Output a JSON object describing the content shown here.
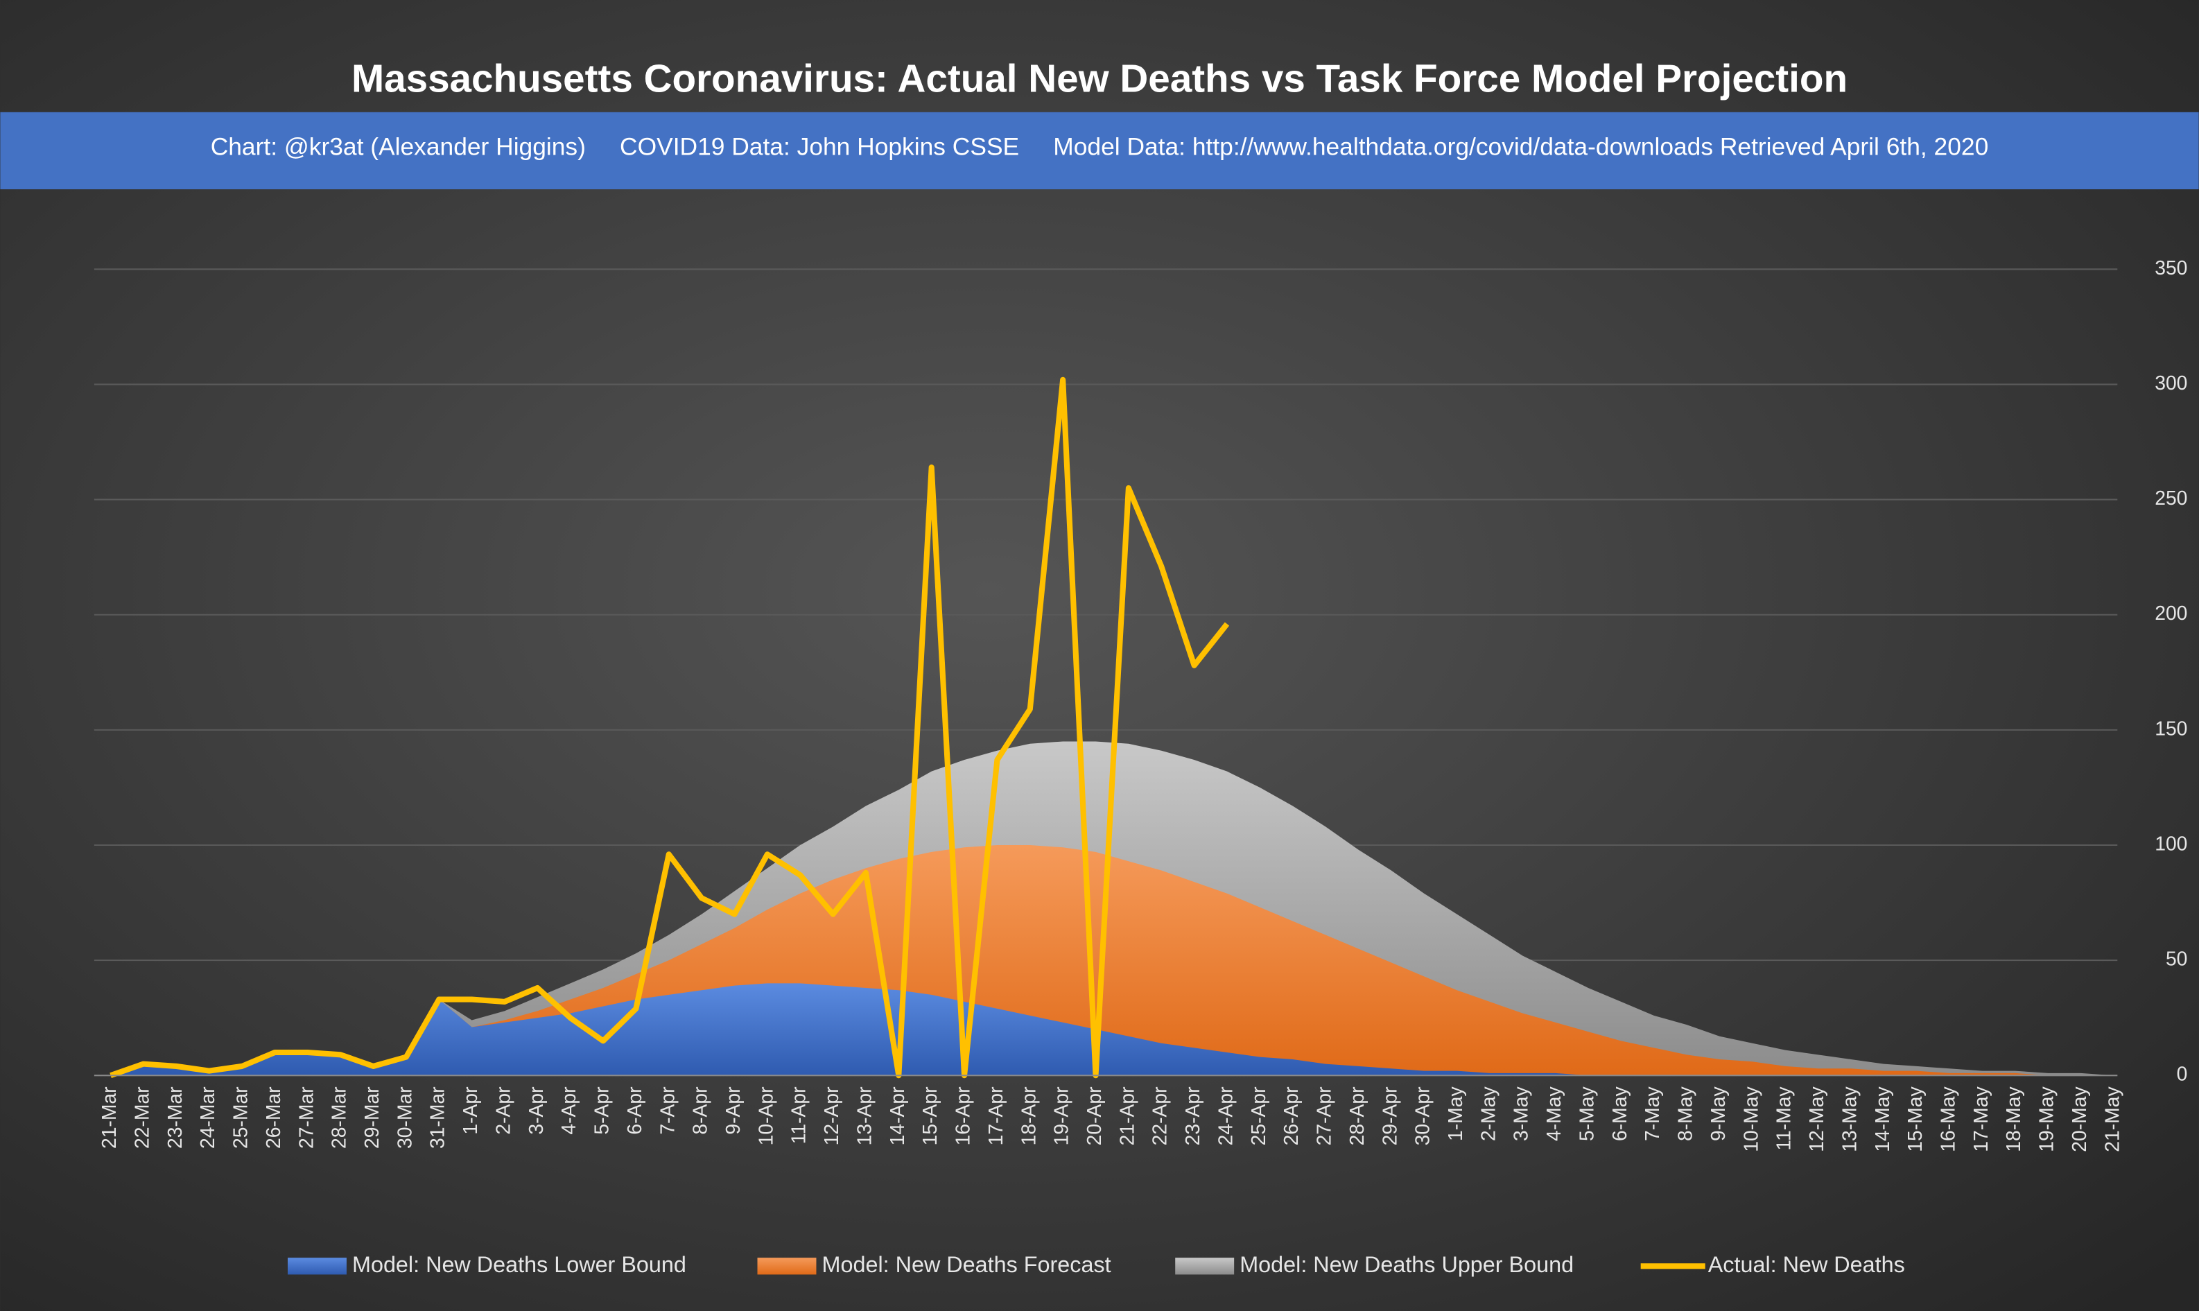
{
  "chart_data": {
    "type": "area-line",
    "title": "Massachusetts Coronavirus: Actual New Deaths vs Task Force Model Projection",
    "subtitle": "Chart: @kr3at (Alexander Higgins)     COVID19 Data: John Hopkins CSSE     Model Data: http://www.healthdata.org/covid/data-downloads Retrieved April 6th, 2020",
    "categories": [
      "21-Mar",
      "22-Mar",
      "23-Mar",
      "24-Mar",
      "25-Mar",
      "26-Mar",
      "27-Mar",
      "28-Mar",
      "29-Mar",
      "30-Mar",
      "31-Mar",
      "1-Apr",
      "2-Apr",
      "3-Apr",
      "4-Apr",
      "5-Apr",
      "6-Apr",
      "7-Apr",
      "8-Apr",
      "9-Apr",
      "10-Apr",
      "11-Apr",
      "12-Apr",
      "13-Apr",
      "14-Apr",
      "15-Apr",
      "16-Apr",
      "17-Apr",
      "18-Apr",
      "19-Apr",
      "20-Apr",
      "21-Apr",
      "22-Apr",
      "23-Apr",
      "24-Apr",
      "25-Apr",
      "26-Apr",
      "27-Apr",
      "28-Apr",
      "29-Apr",
      "30-Apr",
      "1-May",
      "2-May",
      "3-May",
      "4-May",
      "5-May",
      "6-May",
      "7-May",
      "8-May",
      "9-May",
      "10-May",
      "11-May",
      "12-May",
      "13-May",
      "14-May",
      "15-May",
      "16-May",
      "17-May",
      "18-May",
      "19-May",
      "20-May",
      "21-May"
    ],
    "series": [
      {
        "name": "Model: New Deaths Lower Bound",
        "color": "#4472c4",
        "kind": "area",
        "values": [
          0,
          5,
          4,
          2,
          4,
          10,
          10,
          9,
          4,
          8,
          33,
          21,
          23,
          25,
          27,
          30,
          33,
          35,
          37,
          39,
          40,
          40,
          39,
          38,
          37,
          35,
          32,
          29,
          26,
          23,
          20,
          17,
          14,
          12,
          10,
          8,
          7,
          5,
          4,
          3,
          2,
          2,
          1,
          1,
          1,
          0,
          0,
          0,
          0,
          0,
          0,
          0,
          0,
          0,
          0,
          0,
          0,
          0,
          0,
          0,
          0,
          0
        ]
      },
      {
        "name": "Model: New Deaths Forecast",
        "color": "#ed7d31",
        "kind": "area",
        "values": [
          0,
          5,
          4,
          2,
          4,
          10,
          10,
          9,
          4,
          8,
          33,
          21,
          24,
          28,
          33,
          38,
          44,
          50,
          57,
          64,
          72,
          79,
          85,
          90,
          94,
          97,
          99,
          100,
          100,
          99,
          97,
          93,
          89,
          84,
          79,
          73,
          67,
          61,
          55,
          49,
          43,
          37,
          32,
          27,
          23,
          19,
          15,
          12,
          9,
          7,
          6,
          4,
          3,
          3,
          2,
          2,
          1,
          1,
          1,
          0,
          0,
          0
        ]
      },
      {
        "name": "Model: New Deaths Upper Bound",
        "color": "#a5a5a5",
        "kind": "area",
        "values": [
          0,
          5,
          4,
          2,
          4,
          10,
          10,
          9,
          4,
          8,
          33,
          24,
          28,
          34,
          40,
          46,
          53,
          61,
          70,
          80,
          90,
          100,
          108,
          117,
          124,
          132,
          137,
          141,
          144,
          145,
          145,
          144,
          141,
          137,
          132,
          125,
          117,
          108,
          98,
          89,
          79,
          70,
          61,
          52,
          45,
          38,
          32,
          26,
          22,
          17,
          14,
          11,
          9,
          7,
          5,
          4,
          3,
          2,
          2,
          1,
          1,
          0
        ]
      },
      {
        "name": "Actual: New Deaths",
        "color": "#ffc000",
        "kind": "line",
        "values": [
          0,
          5,
          4,
          2,
          4,
          10,
          10,
          9,
          4,
          8,
          33,
          33,
          32,
          38,
          25,
          15,
          29,
          96,
          77,
          70,
          96,
          87,
          70,
          88,
          0,
          264,
          0,
          137,
          159,
          302,
          0,
          255,
          221,
          178,
          196,
          null,
          null,
          null,
          null,
          null,
          null,
          null,
          null,
          null,
          null,
          null,
          null,
          null,
          null,
          null,
          null,
          null,
          null,
          null,
          null,
          null,
          null,
          null,
          null,
          null,
          null,
          null
        ]
      }
    ],
    "ylim": [
      0,
      350
    ],
    "yticks": [
      0,
      50,
      100,
      150,
      200,
      250,
      300,
      350
    ],
    "grid": true,
    "legend": "bottom"
  }
}
